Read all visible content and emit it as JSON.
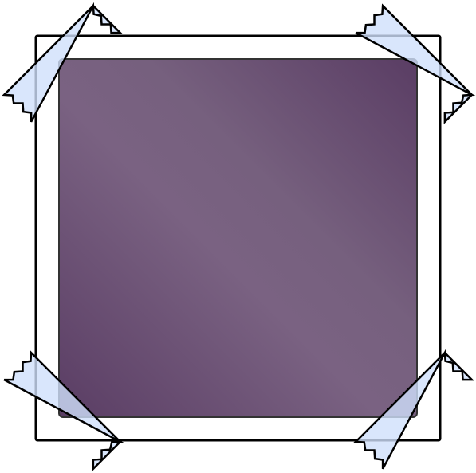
{
  "frame": {
    "background": "#ffffff",
    "border_color": "#000000"
  },
  "photo": {
    "gradient": [
      "#5a3d64",
      "#7a6282",
      "#76607e",
      "#5a3d64"
    ],
    "border_color": "#333333"
  },
  "tape": {
    "fill": "#cfe0fb",
    "opacity": 0.8,
    "stroke": "#000000",
    "pieces": [
      {
        "corner": "top-left"
      },
      {
        "corner": "top-right"
      },
      {
        "corner": "bottom-left"
      },
      {
        "corner": "bottom-right"
      }
    ]
  }
}
